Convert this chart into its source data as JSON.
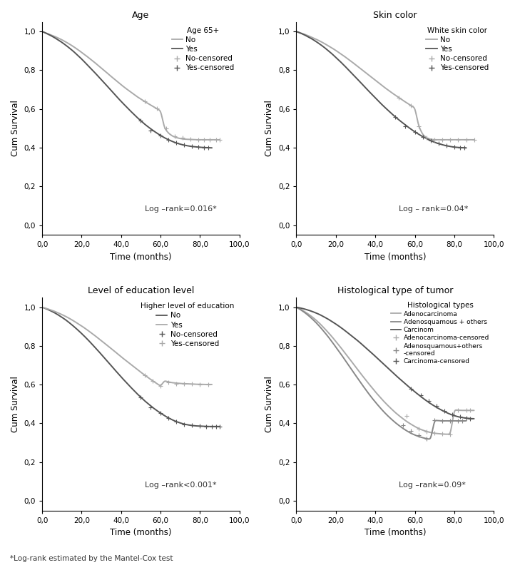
{
  "panels": [
    {
      "title": "Age",
      "legend_title": "Age 65+",
      "pvalue": "Log –rank=0.016*",
      "curve1_label": "No",
      "curve2_label": "Yes",
      "curve1_color": "#aaaaaa",
      "curve2_color": "#555555",
      "curve1_x": [
        0,
        2,
        4,
        6,
        8,
        10,
        12,
        14,
        16,
        18,
        20,
        22,
        24,
        26,
        28,
        30,
        32,
        34,
        36,
        38,
        40,
        42,
        44,
        46,
        48,
        50,
        52,
        54,
        56,
        58,
        60,
        62,
        64,
        66,
        68,
        70,
        72,
        74,
        76,
        78,
        80,
        82,
        84,
        86,
        88,
        90
      ],
      "curve1_y": [
        1.0,
        0.992,
        0.984,
        0.976,
        0.967,
        0.957,
        0.946,
        0.934,
        0.921,
        0.907,
        0.892,
        0.877,
        0.861,
        0.845,
        0.828,
        0.811,
        0.794,
        0.776,
        0.759,
        0.742,
        0.725,
        0.709,
        0.694,
        0.679,
        0.664,
        0.651,
        0.638,
        0.626,
        0.614,
        0.602,
        0.591,
        0.501,
        0.475,
        0.46,
        0.452,
        0.447,
        0.444,
        0.443,
        0.442,
        0.441,
        0.441,
        0.441,
        0.441,
        0.441,
        0.441,
        0.441
      ],
      "curve2_x": [
        0,
        2,
        4,
        6,
        8,
        10,
        12,
        14,
        16,
        18,
        20,
        22,
        24,
        26,
        28,
        30,
        32,
        34,
        36,
        38,
        40,
        42,
        44,
        46,
        48,
        50,
        52,
        54,
        56,
        58,
        60,
        62,
        64,
        66,
        68,
        70,
        72,
        74,
        76,
        78,
        80,
        82,
        84,
        86
      ],
      "curve2_y": [
        1.0,
        0.991,
        0.981,
        0.97,
        0.957,
        0.944,
        0.929,
        0.913,
        0.896,
        0.877,
        0.858,
        0.837,
        0.816,
        0.795,
        0.773,
        0.751,
        0.729,
        0.706,
        0.684,
        0.661,
        0.639,
        0.618,
        0.597,
        0.577,
        0.557,
        0.539,
        0.521,
        0.505,
        0.49,
        0.476,
        0.463,
        0.451,
        0.441,
        0.432,
        0.424,
        0.418,
        0.413,
        0.409,
        0.406,
        0.404,
        0.402,
        0.401,
        0.4,
        0.399
      ],
      "censor1_x": [
        52,
        58,
        63,
        67,
        71,
        75,
        79,
        82,
        85,
        88,
        90
      ],
      "censor1_y": [
        0.638,
        0.602,
        0.501,
        0.46,
        0.452,
        0.444,
        0.442,
        0.441,
        0.441,
        0.441,
        0.441
      ],
      "censor2_x": [
        50,
        55,
        60,
        64,
        68,
        72,
        76,
        79,
        82,
        84
      ],
      "censor2_y": [
        0.539,
        0.49,
        0.463,
        0.441,
        0.424,
        0.413,
        0.406,
        0.403,
        0.401,
        0.399
      ]
    },
    {
      "title": "Skin color",
      "legend_title": "White skin color",
      "pvalue": "Log – rank=0.04*",
      "curve1_label": "No",
      "curve2_label": "Yes",
      "curve1_color": "#aaaaaa",
      "curve2_color": "#555555",
      "curve1_x": [
        0,
        2,
        4,
        6,
        8,
        10,
        12,
        14,
        16,
        18,
        20,
        22,
        24,
        26,
        28,
        30,
        32,
        34,
        36,
        38,
        40,
        42,
        44,
        46,
        48,
        50,
        52,
        54,
        56,
        58,
        60,
        62,
        64,
        66,
        68,
        70,
        72,
        74,
        76,
        78,
        80,
        82,
        84,
        86,
        88,
        90
      ],
      "curve1_y": [
        1.0,
        0.993,
        0.986,
        0.978,
        0.969,
        0.96,
        0.95,
        0.939,
        0.927,
        0.915,
        0.902,
        0.888,
        0.874,
        0.859,
        0.844,
        0.828,
        0.812,
        0.796,
        0.78,
        0.764,
        0.748,
        0.732,
        0.716,
        0.701,
        0.686,
        0.672,
        0.658,
        0.644,
        0.631,
        0.618,
        0.606,
        0.51,
        0.468,
        0.45,
        0.443,
        0.441,
        0.441,
        0.441,
        0.441,
        0.441,
        0.441,
        0.441,
        0.441,
        0.441,
        0.441,
        0.441
      ],
      "curve2_x": [
        0,
        2,
        4,
        6,
        8,
        10,
        12,
        14,
        16,
        18,
        20,
        22,
        24,
        26,
        28,
        30,
        32,
        34,
        36,
        38,
        40,
        42,
        44,
        46,
        48,
        50,
        52,
        54,
        56,
        58,
        60,
        62,
        64,
        66,
        68,
        70,
        72,
        74,
        76,
        78,
        80,
        82,
        84,
        86
      ],
      "curve2_y": [
        1.0,
        0.992,
        0.983,
        0.972,
        0.961,
        0.948,
        0.934,
        0.919,
        0.902,
        0.885,
        0.866,
        0.847,
        0.827,
        0.806,
        0.785,
        0.764,
        0.742,
        0.721,
        0.699,
        0.678,
        0.657,
        0.636,
        0.616,
        0.597,
        0.578,
        0.56,
        0.543,
        0.527,
        0.511,
        0.496,
        0.482,
        0.469,
        0.457,
        0.446,
        0.436,
        0.428,
        0.421,
        0.415,
        0.41,
        0.406,
        0.403,
        0.401,
        0.4,
        0.399
      ],
      "censor1_x": [
        52,
        58,
        62,
        66,
        70,
        74,
        78,
        82,
        86,
        90
      ],
      "censor1_y": [
        0.658,
        0.618,
        0.51,
        0.45,
        0.441,
        0.441,
        0.441,
        0.441,
        0.441,
        0.441
      ],
      "censor2_x": [
        50,
        55,
        60,
        64,
        68,
        72,
        76,
        80,
        83,
        85
      ],
      "censor2_y": [
        0.56,
        0.511,
        0.482,
        0.457,
        0.436,
        0.421,
        0.41,
        0.403,
        0.401,
        0.4
      ]
    },
    {
      "title": "Level of education level",
      "legend_title": "Higher level of education",
      "pvalue": "Log –rank<0.001*",
      "curve1_label": "No",
      "curve2_label": "Yes",
      "curve1_color": "#555555",
      "curve2_color": "#aaaaaa",
      "curve1_x": [
        0,
        2,
        4,
        6,
        8,
        10,
        12,
        14,
        16,
        18,
        20,
        22,
        24,
        26,
        28,
        30,
        32,
        34,
        36,
        38,
        40,
        42,
        44,
        46,
        48,
        50,
        52,
        54,
        56,
        58,
        60,
        62,
        64,
        66,
        68,
        70,
        72,
        74,
        76,
        78,
        80,
        82,
        84,
        86,
        88,
        90
      ],
      "curve1_y": [
        1.0,
        0.992,
        0.983,
        0.973,
        0.961,
        0.948,
        0.934,
        0.918,
        0.901,
        0.883,
        0.864,
        0.844,
        0.823,
        0.801,
        0.779,
        0.756,
        0.733,
        0.71,
        0.686,
        0.663,
        0.64,
        0.618,
        0.596,
        0.575,
        0.554,
        0.535,
        0.516,
        0.499,
        0.482,
        0.467,
        0.453,
        0.44,
        0.428,
        0.418,
        0.409,
        0.402,
        0.396,
        0.392,
        0.389,
        0.387,
        0.386,
        0.385,
        0.384,
        0.384,
        0.384,
        0.384
      ],
      "curve2_x": [
        0,
        2,
        4,
        6,
        8,
        10,
        12,
        14,
        16,
        18,
        20,
        22,
        24,
        26,
        28,
        30,
        32,
        34,
        36,
        38,
        40,
        42,
        44,
        46,
        48,
        50,
        52,
        54,
        56,
        58,
        60,
        62,
        64,
        66,
        68,
        70,
        72,
        74,
        76,
        78,
        80,
        82,
        84,
        86
      ],
      "curve2_y": [
        1.0,
        0.994,
        0.987,
        0.98,
        0.971,
        0.962,
        0.952,
        0.941,
        0.929,
        0.916,
        0.903,
        0.889,
        0.874,
        0.859,
        0.843,
        0.827,
        0.811,
        0.794,
        0.778,
        0.761,
        0.744,
        0.728,
        0.712,
        0.696,
        0.68,
        0.664,
        0.649,
        0.634,
        0.62,
        0.606,
        0.593,
        0.62,
        0.614,
        0.61,
        0.608,
        0.606,
        0.605,
        0.604,
        0.603,
        0.602,
        0.602,
        0.601,
        0.601,
        0.601
      ],
      "censor1_x": [
        50,
        55,
        60,
        64,
        68,
        72,
        76,
        80,
        83,
        86,
        88,
        90
      ],
      "censor1_y": [
        0.535,
        0.482,
        0.453,
        0.428,
        0.409,
        0.396,
        0.389,
        0.386,
        0.385,
        0.384,
        0.384,
        0.384
      ],
      "censor2_x": [
        52,
        56,
        60,
        64,
        68,
        72,
        76,
        80,
        84
      ],
      "censor2_y": [
        0.649,
        0.62,
        0.593,
        0.61,
        0.606,
        0.605,
        0.603,
        0.601,
        0.601
      ]
    },
    {
      "title": "Histological type of tumor",
      "legend_title": "Histological types",
      "pvalue": "Log –rank=0.09*",
      "curve1_label": "Adenocarcinoma",
      "curve2_label": "Adenosquamous + others",
      "curve3_label": "Carcinom",
      "curve1_color": "#aaaaaa",
      "curve2_color": "#888888",
      "curve3_color": "#555555",
      "curve1_x": [
        0,
        2,
        4,
        6,
        8,
        10,
        12,
        14,
        16,
        18,
        20,
        22,
        24,
        26,
        28,
        30,
        32,
        34,
        36,
        38,
        40,
        42,
        44,
        46,
        48,
        50,
        52,
        54,
        56,
        58,
        60,
        62,
        64,
        66,
        68,
        70,
        72,
        74,
        76,
        78,
        80,
        82,
        84,
        86,
        88,
        90
      ],
      "curve1_y": [
        1.0,
        0.99,
        0.978,
        0.965,
        0.95,
        0.933,
        0.914,
        0.893,
        0.871,
        0.848,
        0.823,
        0.798,
        0.772,
        0.745,
        0.719,
        0.692,
        0.665,
        0.639,
        0.613,
        0.588,
        0.563,
        0.54,
        0.517,
        0.496,
        0.476,
        0.457,
        0.44,
        0.424,
        0.409,
        0.396,
        0.384,
        0.373,
        0.365,
        0.358,
        0.353,
        0.349,
        0.347,
        0.345,
        0.344,
        0.344,
        0.47,
        0.468,
        0.467,
        0.467,
        0.467,
        0.467
      ],
      "curve2_x": [
        0,
        2,
        4,
        6,
        8,
        10,
        12,
        14,
        16,
        18,
        20,
        22,
        24,
        26,
        28,
        30,
        32,
        34,
        36,
        38,
        40,
        42,
        44,
        46,
        48,
        50,
        52,
        54,
        56,
        58,
        60,
        62,
        64,
        66,
        68,
        70,
        72,
        74,
        76,
        78,
        80,
        82,
        84,
        86
      ],
      "curve2_y": [
        1.0,
        0.988,
        0.974,
        0.958,
        0.94,
        0.92,
        0.898,
        0.874,
        0.849,
        0.822,
        0.794,
        0.766,
        0.737,
        0.707,
        0.678,
        0.648,
        0.619,
        0.59,
        0.562,
        0.535,
        0.51,
        0.486,
        0.463,
        0.442,
        0.423,
        0.405,
        0.389,
        0.374,
        0.361,
        0.349,
        0.34,
        0.332,
        0.326,
        0.321,
        0.318,
        0.416,
        0.414,
        0.413,
        0.413,
        0.413,
        0.413,
        0.413,
        0.413,
        0.413
      ],
      "curve3_x": [
        0,
        2,
        4,
        6,
        8,
        10,
        12,
        14,
        16,
        18,
        20,
        22,
        24,
        26,
        28,
        30,
        32,
        34,
        36,
        38,
        40,
        42,
        44,
        46,
        48,
        50,
        52,
        54,
        56,
        58,
        60,
        62,
        64,
        66,
        68,
        70,
        72,
        74,
        76,
        78,
        80,
        82,
        84,
        86,
        88,
        90
      ],
      "curve3_y": [
        1.0,
        0.996,
        0.991,
        0.985,
        0.978,
        0.97,
        0.961,
        0.95,
        0.939,
        0.926,
        0.913,
        0.899,
        0.884,
        0.868,
        0.852,
        0.836,
        0.819,
        0.801,
        0.783,
        0.765,
        0.746,
        0.727,
        0.708,
        0.689,
        0.67,
        0.651,
        0.633,
        0.615,
        0.597,
        0.58,
        0.563,
        0.547,
        0.531,
        0.516,
        0.502,
        0.489,
        0.477,
        0.466,
        0.456,
        0.447,
        0.44,
        0.434,
        0.43,
        0.427,
        0.425,
        0.424
      ],
      "censor1_x": [
        56,
        62,
        66,
        70,
        74,
        78,
        82,
        86,
        88
      ],
      "censor1_y": [
        0.44,
        0.373,
        0.358,
        0.349,
        0.345,
        0.344,
        0.468,
        0.467,
        0.467
      ],
      "censor2_x": [
        54,
        58,
        62,
        66,
        70,
        74,
        78,
        82,
        84
      ],
      "censor2_y": [
        0.389,
        0.361,
        0.34,
        0.321,
        0.416,
        0.413,
        0.413,
        0.413,
        0.413
      ],
      "censor3_x": [
        58,
        63,
        67,
        71,
        75,
        79,
        83,
        86,
        88
      ],
      "censor3_y": [
        0.58,
        0.547,
        0.516,
        0.489,
        0.466,
        0.447,
        0.434,
        0.427,
        0.425
      ]
    }
  ],
  "footnote": "*Log-rank estimated by the Mantel-Cox test",
  "xlabel": "Time (months)",
  "ylabel": "Cum Survival",
  "yticks": [
    0.0,
    0.2,
    0.4,
    0.6,
    0.8,
    1.0
  ],
  "ytick_labels": [
    "0,0",
    "0,2",
    "0,4",
    "0,6",
    "0,8",
    "1,0"
  ],
  "xticks": [
    0,
    20,
    40,
    60,
    80,
    100
  ],
  "xtick_labels": [
    "0,0",
    "20,0",
    "40,0",
    "60,0",
    "80,0",
    "100,0"
  ],
  "xlim": [
    0,
    100
  ],
  "ylim": [
    -0.05,
    1.05
  ],
  "background_color": "#ffffff",
  "text_color": "#333333"
}
